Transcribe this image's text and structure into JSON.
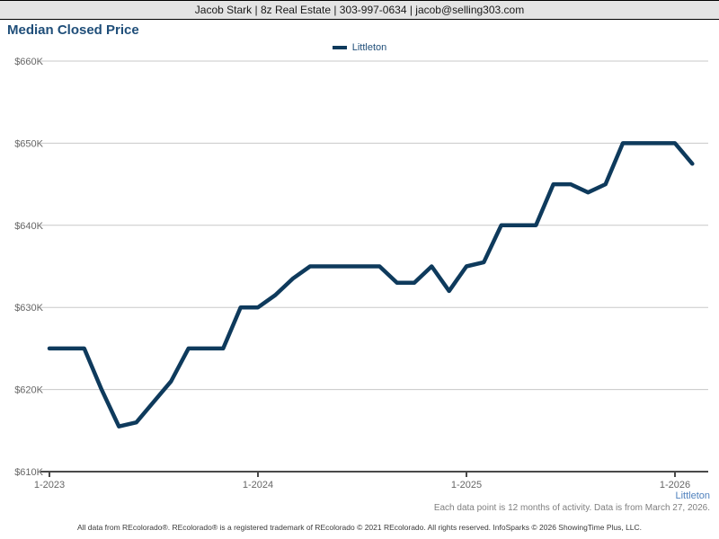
{
  "header": {
    "text": "Jacob Stark | 8z Real Estate | 303-997-0634 | jacob@selling303.com"
  },
  "title": "Median Closed Price",
  "legend": {
    "label": "Littleton",
    "color": "#0e3a5c"
  },
  "footnotes": {
    "region": "Littleton",
    "region_color": "#4f81bd",
    "note": "Each data point is 12 months of activity. Data is from March 27, 2026."
  },
  "footer": {
    "text": "All data from REcolorado®. REcolorado® is a registered trademark of REcolorado © 2021 REcolorado. All rights reserved. InfoSparks © 2026 ShowingTime Plus, LLC."
  },
  "chart_data": {
    "type": "line",
    "title": "Median Closed Price",
    "xlabel": "",
    "ylabel": "",
    "ylim": [
      610,
      660
    ],
    "values_unit": "USD thousands",
    "grid": "horizontal",
    "legend_position": "top-center",
    "colors": {
      "line": "#0e3a5c",
      "gridline": "#c8c8c8",
      "axis": "#4a4a4a",
      "tick_label": "#666666"
    },
    "y_ticks": [
      {
        "label": "$660K",
        "value": 660
      },
      {
        "label": "$650K",
        "value": 650
      },
      {
        "label": "$640K",
        "value": 640
      },
      {
        "label": "$630K",
        "value": 630
      },
      {
        "label": "$620K",
        "value": 620
      },
      {
        "label": "$610K",
        "value": 610
      }
    ],
    "x_ticks": [
      {
        "label": "1-2023",
        "index": 0
      },
      {
        "label": "1-2024",
        "index": 12
      },
      {
        "label": "1-2025",
        "index": 24
      },
      {
        "label": "1-2026",
        "index": 36
      }
    ],
    "x": [
      "1-2023",
      "2-2023",
      "3-2023",
      "4-2023",
      "5-2023",
      "6-2023",
      "7-2023",
      "8-2023",
      "9-2023",
      "10-2023",
      "11-2023",
      "12-2023",
      "1-2024",
      "2-2024",
      "3-2024",
      "4-2024",
      "5-2024",
      "6-2024",
      "7-2024",
      "8-2024",
      "9-2024",
      "10-2024",
      "11-2024",
      "12-2024",
      "1-2025",
      "2-2025",
      "3-2025",
      "4-2025",
      "5-2025",
      "6-2025",
      "7-2025",
      "8-2025",
      "9-2025",
      "10-2025",
      "11-2025",
      "12-2025",
      "1-2026",
      "2-2026"
    ],
    "series": [
      {
        "name": "Littleton",
        "color": "#0e3a5c",
        "values": [
          625,
          625,
          625,
          620,
          615.5,
          616,
          618.5,
          621,
          625,
          625,
          625,
          630,
          630,
          631.5,
          633.5,
          635,
          635,
          635,
          635,
          635,
          633,
          633,
          635,
          632,
          635,
          635.5,
          640,
          640,
          640,
          645,
          645,
          644,
          645,
          650,
          650,
          650,
          650,
          647.5
        ]
      }
    ]
  }
}
